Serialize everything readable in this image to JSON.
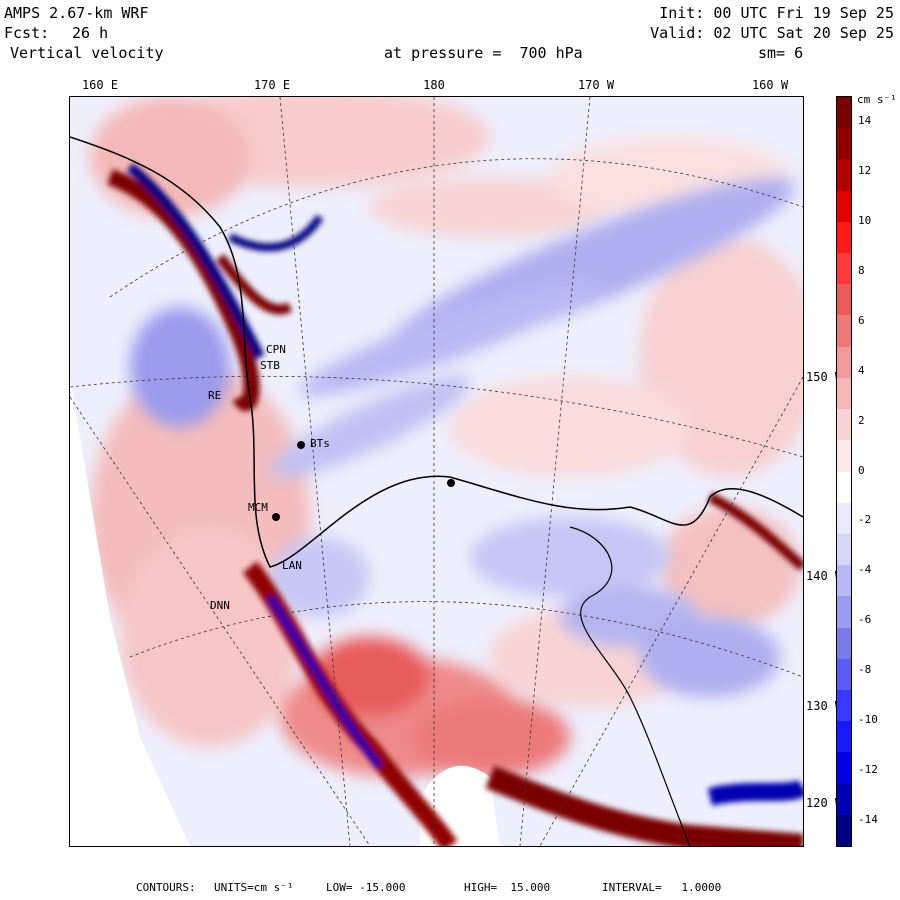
{
  "header": {
    "model": "AMPS 2.67-km WRF",
    "init": "Init: 00 UTC Fri 19 Sep 25",
    "fcst_label": "Fcst:",
    "fcst_value": "26 h",
    "valid": "Valid: 02 UTC Sat 20 Sep 25",
    "field": "Vertical velocity",
    "pressure": "at pressure =  700 hPa",
    "smoothing": "sm= 6"
  },
  "longitude_labels": [
    "160 E",
    "170 E",
    "180",
    "170 W",
    "160 W"
  ],
  "latitude_labels": [
    "150 W",
    "140 W",
    "130 W",
    "120 W"
  ],
  "colorbar": {
    "unit": "cm s⁻¹",
    "tick_labels": [
      "14",
      "12",
      "10",
      "8",
      "6",
      "4",
      "2",
      "0",
      "-2",
      "-4",
      "-6",
      "-8",
      "-10",
      "-12",
      "-14"
    ],
    "range": [
      -15,
      15
    ],
    "colors": [
      "#00007f",
      "#0000b0",
      "#0000e0",
      "#1a1aff",
      "#3a3aff",
      "#5c5cf5",
      "#7a7ae8",
      "#9a9aee",
      "#b8b8f4",
      "#d6d6f8",
      "#eaeafc",
      "#ffffff",
      "#fdeaea",
      "#f8d4d4",
      "#f4b8b8",
      "#f09a9a",
      "#ec7a7a",
      "#e85c5c",
      "#ff3a3a",
      "#ff1a1a",
      "#e00000",
      "#b00000",
      "#900000",
      "#7a0000"
    ]
  },
  "stations": [
    {
      "name": "CPN"
    },
    {
      "name": "STB"
    },
    {
      "name": "RE"
    },
    {
      "name": "BTs"
    },
    {
      "name": "MCM"
    },
    {
      "name": "LAN"
    },
    {
      "name": "DNN"
    }
  ],
  "footer": {
    "contours_label": "CONTOURS:",
    "units": "UNITS=cm s⁻¹",
    "low": "LOW= -15.000",
    "high": "HIGH=  15.000",
    "interval": "INTERVAL=   1.0000"
  }
}
